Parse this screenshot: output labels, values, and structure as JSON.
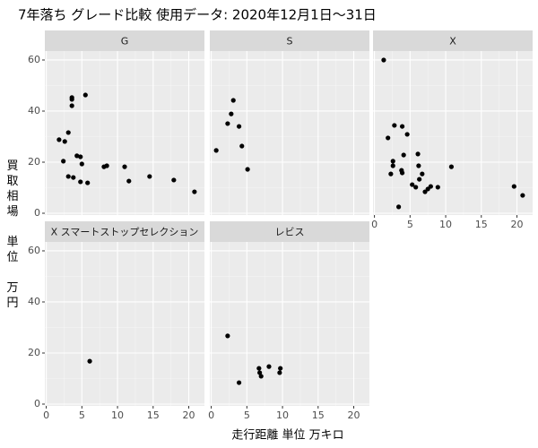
{
  "chart_data": {
    "type": "scatter",
    "title": "7年落ち グレード比較 使用データ: 2020年12月1日～31日",
    "xlabel": "走行距離 単位 万キロ",
    "ylabel": "買取相場 単位 万円",
    "xlim": [
      -0.2,
      22.2
    ],
    "ylim": [
      -0.7,
      63.5
    ],
    "xticks": [
      0,
      5,
      10,
      15,
      20
    ],
    "yticks": [
      0,
      20,
      40,
      60
    ],
    "grid": true,
    "color": "#000000",
    "facets": [
      {
        "name": "G",
        "x": [
          1.8,
          2.6,
          2.4,
          3.1,
          3.6,
          3.6,
          3.6,
          3.1,
          3.8,
          4.3,
          4.8,
          5.0,
          4.8,
          5.5,
          5.8,
          8.1,
          8.5,
          11.0,
          11.6,
          14.5,
          17.9,
          20.8
        ],
        "values": [
          28.8,
          28.1,
          20.4,
          31.6,
          45.3,
          44.6,
          42.1,
          14.4,
          14.0,
          22.5,
          22.1,
          19.3,
          12.3,
          46.3,
          11.9,
          18.2,
          18.6,
          18.2,
          12.6,
          14.4,
          13.0,
          8.4
        ]
      },
      {
        "name": "S",
        "x": [
          0.7,
          2.3,
          2.8,
          3.1,
          3.9,
          4.3,
          5.1
        ],
        "values": [
          24.6,
          35.1,
          38.9,
          44.2,
          34.0,
          26.3,
          17.2
        ]
      },
      {
        "name": "X",
        "x": [
          1.3,
          1.9,
          2.3,
          2.6,
          2.6,
          2.8,
          3.4,
          3.8,
          3.9,
          3.9,
          4.1,
          4.6,
          5.3,
          5.8,
          6.1,
          6.2,
          6.3,
          6.7,
          7.1,
          7.5,
          7.9,
          8.9,
          10.8,
          19.6,
          20.8
        ],
        "values": [
          60.0,
          29.5,
          15.4,
          18.6,
          20.4,
          34.4,
          2.5,
          16.8,
          15.8,
          34.0,
          22.8,
          30.9,
          11.2,
          10.2,
          23.2,
          18.6,
          13.3,
          15.4,
          8.4,
          9.5,
          10.5,
          10.2,
          18.2,
          10.5,
          7.0
        ]
      },
      {
        "name": "X スマートストップセレクション",
        "x": [
          6.1
        ],
        "values": [
          16.8
        ]
      },
      {
        "name": "レビス",
        "x": [
          2.3,
          3.9,
          6.7,
          6.8,
          7.0,
          8.1,
          9.6,
          9.7
        ],
        "values": [
          26.7,
          8.4,
          14.0,
          12.3,
          10.9,
          14.7,
          12.3,
          14.0
        ]
      }
    ]
  }
}
